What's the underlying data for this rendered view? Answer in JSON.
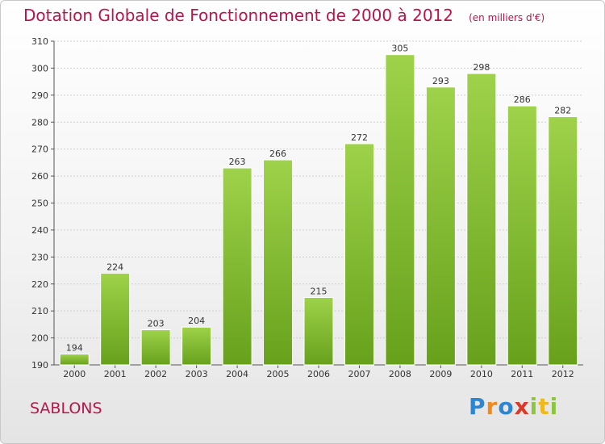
{
  "title": "Dotation Globale de Fonctionnement de 2000 à 2012",
  "unit": "(en milliers d'€)",
  "location": "SABLONS",
  "logo": {
    "letters": [
      "P",
      "r",
      "o",
      "x",
      "i",
      "t",
      "i"
    ],
    "text": "Proxiti"
  },
  "colors": {
    "title": "#b5174a",
    "bar_top": "#9ed24a",
    "bar_bottom": "#6aa51e",
    "grid": "#d0d0d0"
  },
  "chart_data": {
    "type": "bar",
    "categories": [
      "2000",
      "2001",
      "2002",
      "2003",
      "2004",
      "2005",
      "2006",
      "2007",
      "2008",
      "2009",
      "2010",
      "2011",
      "2012"
    ],
    "values": [
      194,
      224,
      203,
      204,
      263,
      266,
      215,
      272,
      305,
      293,
      298,
      286,
      282
    ],
    "ylim": [
      190,
      310
    ],
    "yticks": [
      190,
      200,
      210,
      220,
      230,
      240,
      250,
      260,
      270,
      280,
      290,
      300,
      310
    ],
    "grid": true,
    "xlabel": "",
    "ylabel": ""
  }
}
